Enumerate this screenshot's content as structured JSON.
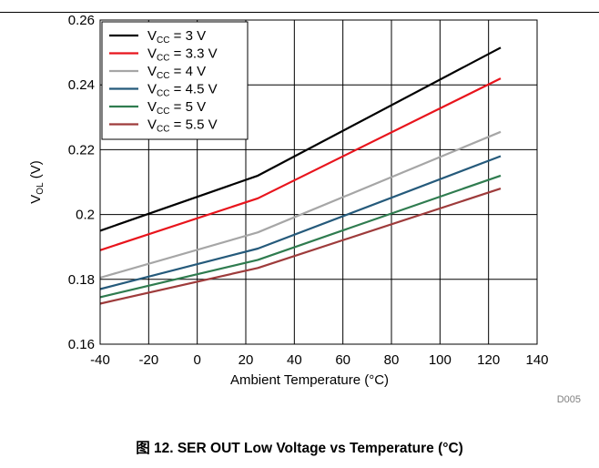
{
  "chart_data": {
    "type": "line",
    "xlabel": "Ambient  Temperature (°C)",
    "ylabel": {
      "main": "V",
      "sub": "OL",
      "unit": " (V)"
    },
    "xlim": [
      -40,
      140
    ],
    "ylim": [
      0.16,
      0.26
    ],
    "xticks": [
      -40,
      -20,
      0,
      20,
      40,
      60,
      80,
      100,
      120,
      140
    ],
    "yticks": [
      0.16,
      0.18,
      0.2,
      0.22,
      0.24,
      0.26
    ],
    "xtick_labels": [
      "-40",
      "-20",
      "0",
      "20",
      "40",
      "60",
      "80",
      "100",
      "120",
      "140"
    ],
    "ytick_labels": [
      "0.16",
      "0.18",
      "0.2",
      "0.22",
      "0.24",
      "0.26"
    ],
    "grid": true,
    "legend_position": "top-left",
    "code_label": "D005",
    "series": [
      {
        "name": "VCC = 3 V",
        "label_main": "V",
        "label_sub": "CC",
        "label_rest": " = 3 V",
        "color": "#000000",
        "x": [
          -40,
          25,
          125
        ],
        "y": [
          0.195,
          0.212,
          0.2515
        ]
      },
      {
        "name": "VCC = 3.3 V",
        "label_main": "V",
        "label_sub": "CC",
        "label_rest": " = 3.3 V",
        "color": "#e8141c",
        "x": [
          -40,
          25,
          125
        ],
        "y": [
          0.189,
          0.205,
          0.242
        ]
      },
      {
        "name": "VCC = 4 V",
        "label_main": "V",
        "label_sub": "CC",
        "label_rest": " = 4 V",
        "color": "#a6a6a6",
        "x": [
          -40,
          25,
          125
        ],
        "y": [
          0.1805,
          0.1945,
          0.2255
        ]
      },
      {
        "name": "VCC = 4.5 V",
        "label_main": "V",
        "label_sub": "CC",
        "label_rest": " = 4.5 V",
        "color": "#255a7b",
        "x": [
          -40,
          25,
          125
        ],
        "y": [
          0.177,
          0.1895,
          0.218
        ]
      },
      {
        "name": "VCC = 5 V",
        "label_main": "V",
        "label_sub": "CC",
        "label_rest": " = 5 V",
        "color": "#2f7c4f",
        "x": [
          -40,
          25,
          125
        ],
        "y": [
          0.1745,
          0.186,
          0.212
        ]
      },
      {
        "name": "VCC = 5.5 V",
        "label_main": "V",
        "label_sub": "CC",
        "label_rest": " = 5.5 V",
        "color": "#9e3b3b",
        "x": [
          -40,
          25,
          125
        ],
        "y": [
          0.1725,
          0.1835,
          0.208
        ]
      }
    ]
  },
  "caption": "图 12. SER OUT Low Voltage vs Temperature (°C)"
}
